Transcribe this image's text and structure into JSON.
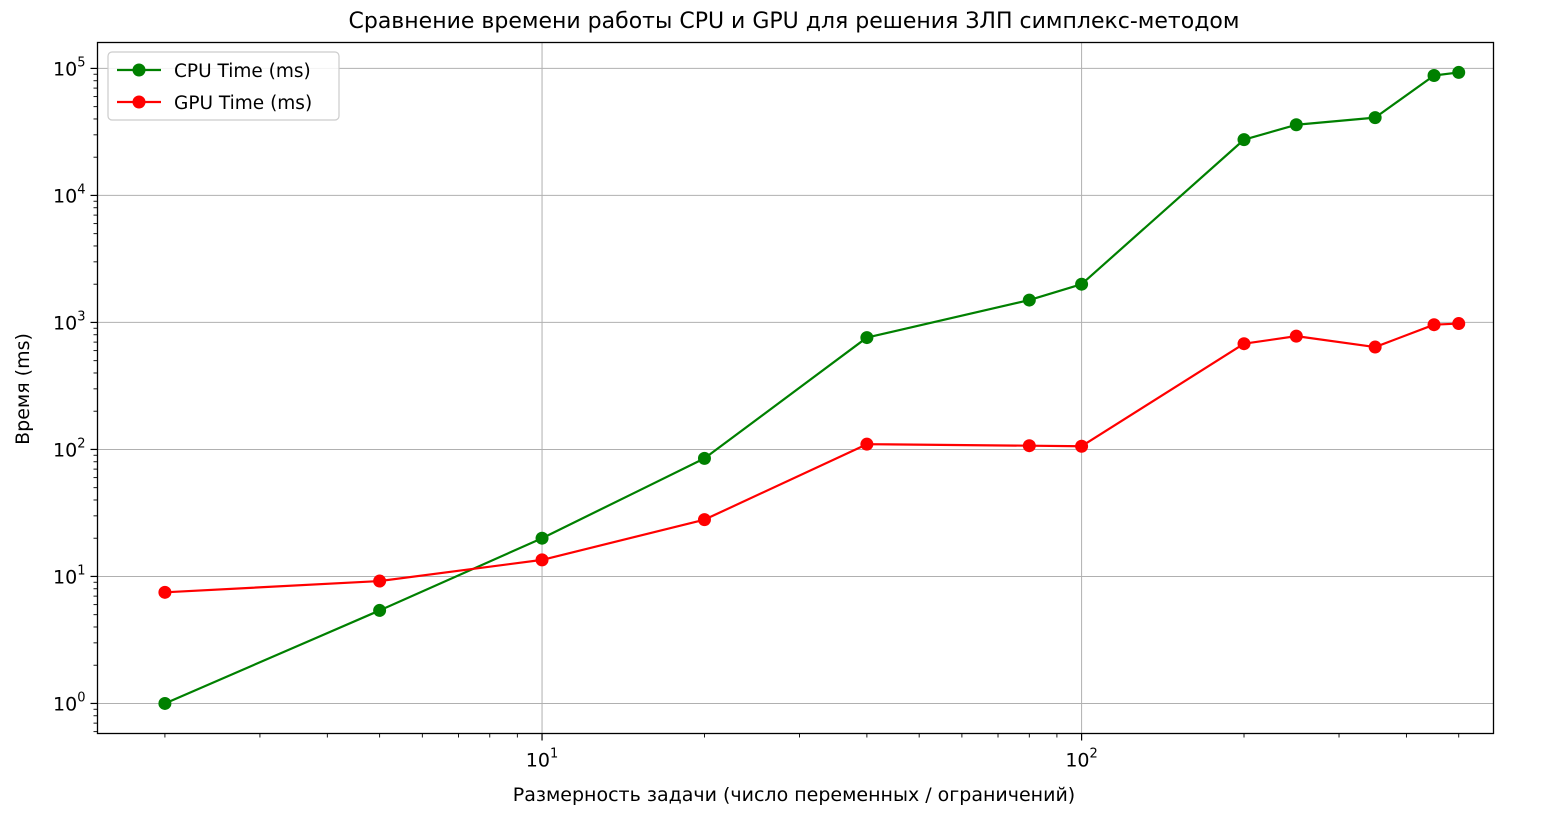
{
  "chart_data": {
    "type": "line",
    "title": "Сравнение времени работы CPU и GPU для решения ЗЛП симплекс-методом",
    "xlabel": "Размерность задачи (число переменных / ограничений)",
    "ylabel": "Время (ms)",
    "xscale": "log",
    "yscale": "log",
    "xlim": [
      1.5,
      580
    ],
    "ylim": [
      0.58,
      160000
    ],
    "grid": true,
    "legend_position": "top-left",
    "x": [
      2,
      5,
      10,
      20,
      40,
      80,
      100,
      200,
      250,
      350,
      450,
      500
    ],
    "series": [
      {
        "name": "CPU Time (ms)",
        "color": "#008000",
        "values": [
          1.0,
          5.4,
          20,
          85,
          760,
          1500,
          2000,
          27500,
          36000,
          41000,
          88000,
          93000
        ]
      },
      {
        "name": "GPU Time (ms)",
        "color": "#ff0000",
        "values": [
          7.5,
          9.2,
          13.5,
          28,
          110,
          107,
          106,
          680,
          780,
          640,
          960,
          980
        ]
      }
    ],
    "x_ticks": [
      {
        "base": "10",
        "exp": "1",
        "value": 10
      },
      {
        "base": "10",
        "exp": "2",
        "value": 100
      }
    ],
    "y_ticks": [
      {
        "base": "10",
        "exp": "0",
        "value": 1
      },
      {
        "base": "10",
        "exp": "1",
        "value": 10
      },
      {
        "base": "10",
        "exp": "2",
        "value": 100
      },
      {
        "base": "10",
        "exp": "3",
        "value": 1000
      },
      {
        "base": "10",
        "exp": "4",
        "value": 10000
      },
      {
        "base": "10",
        "exp": "5",
        "value": 100000
      }
    ]
  }
}
